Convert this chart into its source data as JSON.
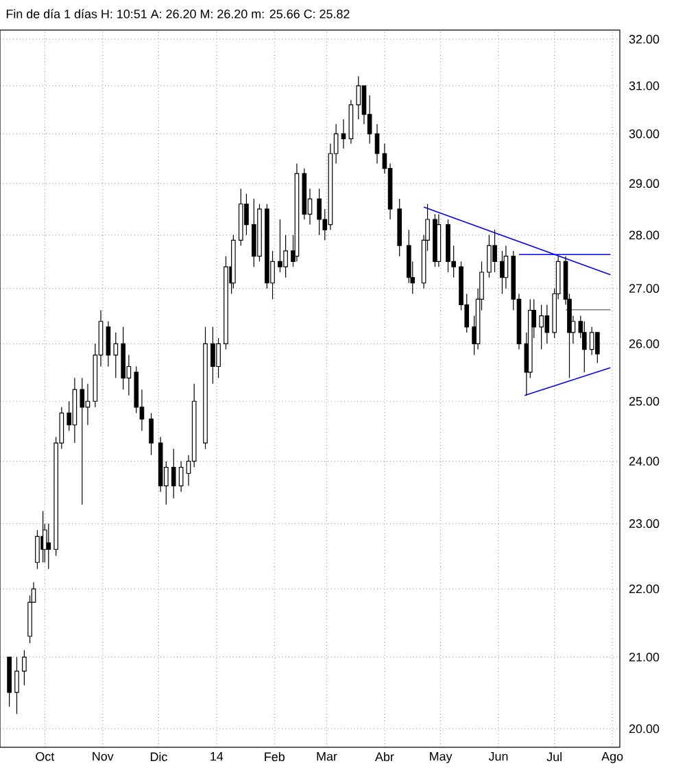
{
  "chart_data": {
    "type": "candlestick",
    "title": "Fin de día 1 días H: 10:51 A: 26.20 M: 26.20 m: 25.66 C: 25.82",
    "x": [
      "2013-09-12",
      "2013-09-16",
      "2013-09-20",
      "2013-09-23",
      "2013-09-25",
      "2013-09-27",
      "2013-09-30",
      "2013-10-01",
      "2013-10-03",
      "2013-10-07",
      "2013-10-10",
      "2013-10-14",
      "2013-10-17",
      "2013-10-21",
      "2013-10-24",
      "2013-10-28",
      "2013-10-31",
      "2013-11-04",
      "2013-11-08",
      "2013-11-12",
      "2013-11-15",
      "2013-11-19",
      "2013-11-22",
      "2013-11-27",
      "2013-12-02",
      "2013-12-05",
      "2013-12-09",
      "2013-12-13",
      "2013-12-17",
      "2013-12-20",
      "2013-12-26",
      "2013-12-30",
      "2014-01-02",
      "2014-01-06",
      "2014-01-09",
      "2014-01-10",
      "2014-01-14",
      "2014-01-17",
      "2014-01-21",
      "2014-01-24",
      "2014-01-28",
      "2014-01-31",
      "2014-02-04",
      "2014-02-07",
      "2014-02-11",
      "2014-02-13",
      "2014-02-17",
      "2014-02-20",
      "2014-02-25",
      "2014-02-28",
      "2014-03-03",
      "2014-03-06",
      "2014-03-10",
      "2014-03-14",
      "2014-03-18",
      "2014-03-21",
      "2014-03-24",
      "2014-03-28",
      "2014-04-01",
      "2014-04-04",
      "2014-04-09",
      "2014-04-14",
      "2014-04-16",
      "2014-04-22",
      "2014-04-24",
      "2014-04-28",
      "2014-04-30",
      "2014-05-05",
      "2014-05-08",
      "2014-05-12",
      "2014-05-15",
      "2014-05-19",
      "2014-05-21",
      "2014-05-23",
      "2014-05-27",
      "2014-05-30",
      "2014-06-03",
      "2014-06-05",
      "2014-06-09",
      "2014-06-12",
      "2014-06-16",
      "2014-06-18",
      "2014-06-20",
      "2014-06-24",
      "2014-06-27",
      "2014-07-01",
      "2014-07-03",
      "2014-07-07",
      "2014-07-09",
      "2014-07-11",
      "2014-07-15",
      "2014-07-17",
      "2014-07-21",
      "2014-07-24"
    ],
    "ohlc": [
      [
        21.0,
        21.0,
        20.3,
        20.5
      ],
      [
        20.5,
        21.0,
        20.2,
        20.8
      ],
      [
        20.8,
        21.1,
        20.6,
        21.0
      ],
      [
        21.3,
        21.9,
        21.2,
        21.8
      ],
      [
        21.8,
        22.1,
        21.8,
        22.0
      ],
      [
        22.4,
        22.9,
        22.3,
        22.8
      ],
      [
        22.8,
        23.2,
        22.4,
        22.6
      ],
      [
        22.6,
        23.0,
        22.4,
        22.9
      ],
      [
        22.7,
        23.0,
        22.3,
        22.6
      ],
      [
        22.6,
        24.4,
        22.5,
        24.3
      ],
      [
        24.3,
        24.9,
        24.2,
        24.8
      ],
      [
        24.8,
        25.0,
        24.5,
        24.6
      ],
      [
        24.6,
        25.4,
        24.3,
        25.2
      ],
      [
        25.2,
        25.4,
        23.3,
        24.9
      ],
      [
        24.9,
        25.3,
        24.6,
        25.0
      ],
      [
        25.0,
        26.0,
        24.9,
        25.8
      ],
      [
        25.8,
        26.6,
        25.6,
        26.4
      ],
      [
        26.3,
        26.4,
        25.6,
        25.8
      ],
      [
        25.8,
        26.2,
        25.4,
        26.0
      ],
      [
        26.0,
        26.3,
        25.2,
        25.4
      ],
      [
        25.4,
        25.8,
        25.1,
        25.6
      ],
      [
        25.5,
        25.6,
        24.8,
        24.9
      ],
      [
        24.9,
        25.2,
        24.5,
        24.7
      ],
      [
        24.7,
        24.8,
        24.1,
        24.3
      ],
      [
        24.3,
        24.4,
        23.5,
        23.6
      ],
      [
        23.6,
        24.0,
        23.3,
        23.9
      ],
      [
        23.9,
        24.2,
        23.4,
        23.6
      ],
      [
        23.6,
        24.0,
        23.5,
        23.9
      ],
      [
        23.8,
        24.1,
        23.6,
        24.0
      ],
      [
        24.0,
        25.3,
        23.9,
        25.0
      ],
      [
        24.3,
        26.3,
        24.2,
        26.0
      ],
      [
        26.0,
        26.3,
        25.3,
        25.6
      ],
      [
        25.6,
        26.1,
        25.4,
        26.0
      ],
      [
        26.0,
        27.6,
        25.9,
        27.4
      ],
      [
        27.4,
        27.8,
        26.9,
        27.1
      ],
      [
        27.1,
        28.0,
        27.0,
        27.9
      ],
      [
        27.9,
        28.9,
        27.8,
        28.6
      ],
      [
        28.6,
        28.8,
        28.0,
        28.2
      ],
      [
        28.2,
        28.7,
        27.4,
        27.6
      ],
      [
        27.6,
        28.6,
        27.5,
        28.5
      ],
      [
        28.5,
        28.6,
        27.0,
        27.1
      ],
      [
        27.1,
        27.7,
        26.8,
        27.5
      ],
      [
        27.5,
        28.3,
        27.3,
        27.4
      ],
      [
        27.4,
        28.0,
        27.2,
        27.7
      ],
      [
        27.7,
        28.0,
        27.4,
        27.5
      ],
      [
        27.6,
        29.4,
        27.5,
        29.2
      ],
      [
        29.2,
        29.3,
        28.3,
        28.4
      ],
      [
        28.4,
        28.9,
        28.2,
        28.7
      ],
      [
        28.7,
        28.9,
        28.0,
        28.3
      ],
      [
        28.3,
        28.5,
        27.9,
        28.1
      ],
      [
        28.2,
        29.8,
        28.1,
        29.6
      ],
      [
        29.6,
        30.2,
        29.4,
        30.0
      ],
      [
        30.0,
        30.3,
        29.7,
        29.9
      ],
      [
        29.9,
        30.7,
        29.8,
        30.6
      ],
      [
        30.6,
        31.2,
        30.3,
        31.0
      ],
      [
        31.0,
        31.0,
        30.2,
        30.4
      ],
      [
        30.4,
        30.8,
        29.8,
        30.0
      ],
      [
        30.0,
        30.2,
        29.4,
        29.6
      ],
      [
        29.6,
        29.8,
        29.2,
        29.3
      ],
      [
        29.3,
        29.4,
        28.3,
        28.5
      ],
      [
        28.5,
        28.7,
        27.6,
        27.8
      ],
      [
        27.8,
        28.1,
        27.1,
        27.2
      ],
      [
        27.2,
        27.5,
        26.9,
        27.1
      ],
      [
        27.1,
        28.0,
        27.0,
        27.9
      ],
      [
        27.9,
        28.6,
        27.7,
        28.3
      ],
      [
        28.3,
        28.4,
        27.4,
        27.5
      ],
      [
        27.5,
        28.4,
        27.4,
        28.2
      ],
      [
        28.2,
        28.3,
        27.3,
        27.5
      ],
      [
        27.5,
        27.8,
        27.2,
        27.4
      ],
      [
        27.4,
        27.5,
        26.6,
        26.7
      ],
      [
        26.7,
        26.9,
        26.2,
        26.3
      ],
      [
        26.3,
        26.5,
        25.8,
        26.0
      ],
      [
        26.0,
        27.0,
        25.9,
        26.8
      ],
      [
        26.8,
        27.5,
        26.6,
        27.3
      ],
      [
        27.3,
        28.0,
        27.2,
        27.8
      ],
      [
        27.8,
        28.1,
        27.3,
        27.5
      ],
      [
        27.5,
        27.7,
        26.9,
        27.2
      ],
      [
        27.2,
        27.8,
        27.0,
        27.6
      ],
      [
        27.6,
        27.7,
        26.6,
        26.8
      ],
      [
        26.8,
        26.9,
        25.9,
        26.0
      ],
      [
        26.0,
        26.2,
        25.1,
        25.5
      ],
      [
        25.5,
        26.8,
        25.4,
        26.6
      ],
      [
        26.6,
        26.8,
        26.1,
        26.3
      ],
      [
        26.3,
        26.7,
        25.9,
        26.5
      ],
      [
        26.5,
        26.7,
        26.0,
        26.2
      ],
      [
        26.2,
        27.0,
        26.1,
        26.9
      ],
      [
        26.9,
        27.6,
        26.8,
        27.5
      ],
      [
        27.5,
        27.6,
        26.7,
        26.8
      ],
      [
        26.8,
        26.9,
        25.4,
        26.2
      ],
      [
        26.2,
        26.5,
        26.0,
        26.4
      ],
      [
        26.4,
        26.5,
        26.1,
        26.2
      ],
      [
        26.2,
        26.4,
        25.5,
        25.9
      ],
      [
        25.9,
        26.3,
        25.8,
        26.2
      ],
      [
        26.2,
        26.2,
        25.66,
        25.82
      ]
    ],
    "series": [
      {
        "type": "line",
        "color": "#0000ff",
        "x": [
          "2014-04-22",
          "2014-07-31"
        ],
        "values": [
          28.54,
          27.25
        ]
      },
      {
        "type": "line",
        "color": "#0000ff",
        "x": [
          "2014-06-12",
          "2014-07-31"
        ],
        "values": [
          27.63,
          27.63
        ]
      },
      {
        "type": "line",
        "color": "#0000ff",
        "x": [
          "2014-06-15",
          "2014-07-31"
        ],
        "values": [
          25.1,
          25.58
        ]
      },
      {
        "type": "line",
        "color": "#808080",
        "x": [
          "2014-07-07",
          "2014-07-31"
        ],
        "values": [
          26.61,
          26.61
        ]
      }
    ],
    "log": "y",
    "grid": true,
    "xlim": [
      "2013-09-07",
      "2014-08-05"
    ],
    "xticks": [
      {
        "value": "2013-10-01",
        "label": "Oct"
      },
      {
        "value": "2013-11-01",
        "label": "Nov"
      },
      {
        "value": "2013-12-01",
        "label": "Dic"
      },
      {
        "value": "2014-01-01",
        "label": "14"
      },
      {
        "value": "2014-02-01",
        "label": "Feb"
      },
      {
        "value": "2014-03-01",
        "label": "Mar"
      },
      {
        "value": "2014-04-01",
        "label": "Abr"
      },
      {
        "value": "2014-05-01",
        "label": "May"
      },
      {
        "value": "2014-06-01",
        "label": "Jun"
      },
      {
        "value": "2014-07-01",
        "label": "Jul"
      },
      {
        "value": "2014-08-01",
        "label": "Ago"
      }
    ],
    "ylim": [
      19.75,
      32.2
    ],
    "yticks": [
      {
        "value": 20,
        "label": "20.00"
      },
      {
        "value": 21,
        "label": "21.00"
      },
      {
        "value": 22,
        "label": "22.00"
      },
      {
        "value": 23,
        "label": "23.00"
      },
      {
        "value": 24,
        "label": "24.00"
      },
      {
        "value": 25,
        "label": "25.00"
      },
      {
        "value": 26,
        "label": "26.00"
      },
      {
        "value": 27,
        "label": "27.00"
      },
      {
        "value": 28,
        "label": "28.00"
      },
      {
        "value": 29,
        "label": "29.00"
      },
      {
        "value": 30,
        "label": "30.00"
      },
      {
        "value": 31,
        "label": "31.00"
      },
      {
        "value": 32,
        "label": "32.00"
      }
    ]
  }
}
